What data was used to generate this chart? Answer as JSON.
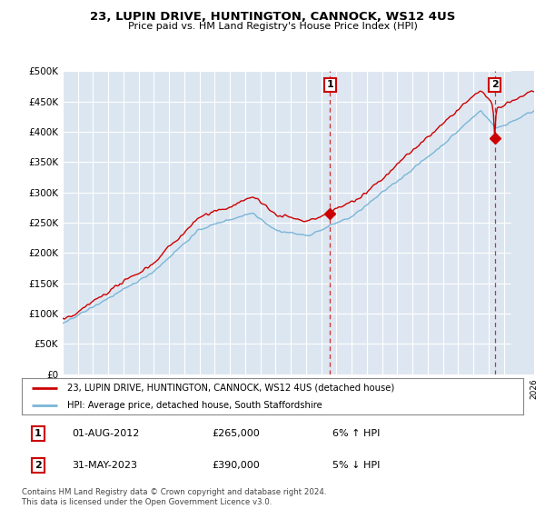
{
  "title": "23, LUPIN DRIVE, HUNTINGTON, CANNOCK, WS12 4US",
  "subtitle": "Price paid vs. HM Land Registry's House Price Index (HPI)",
  "property_label": "23, LUPIN DRIVE, HUNTINGTON, CANNOCK, WS12 4US (detached house)",
  "hpi_label": "HPI: Average price, detached house, South Staffordshire",
  "sale1_date": "01-AUG-2012",
  "sale1_price": 265000,
  "sale1_pct": "6% ↑ HPI",
  "sale2_date": "31-MAY-2023",
  "sale2_price": 390000,
  "sale2_pct": "5% ↓ HPI",
  "footer": "Contains HM Land Registry data © Crown copyright and database right 2024.\nThis data is licensed under the Open Government Licence v3.0.",
  "background_color": "#ffffff",
  "plot_bg_color": "#dce6f0",
  "grid_color": "#ffffff",
  "hpi_color": "#7ab5d8",
  "price_color": "#cc0000",
  "ylim": [
    0,
    500000
  ],
  "yticks": [
    0,
    50000,
    100000,
    150000,
    200000,
    250000,
    300000,
    350000,
    400000,
    450000,
    500000
  ],
  "start_year": 1995,
  "end_year": 2026,
  "sale1_x": 2012.583,
  "sale2_x": 2023.417
}
